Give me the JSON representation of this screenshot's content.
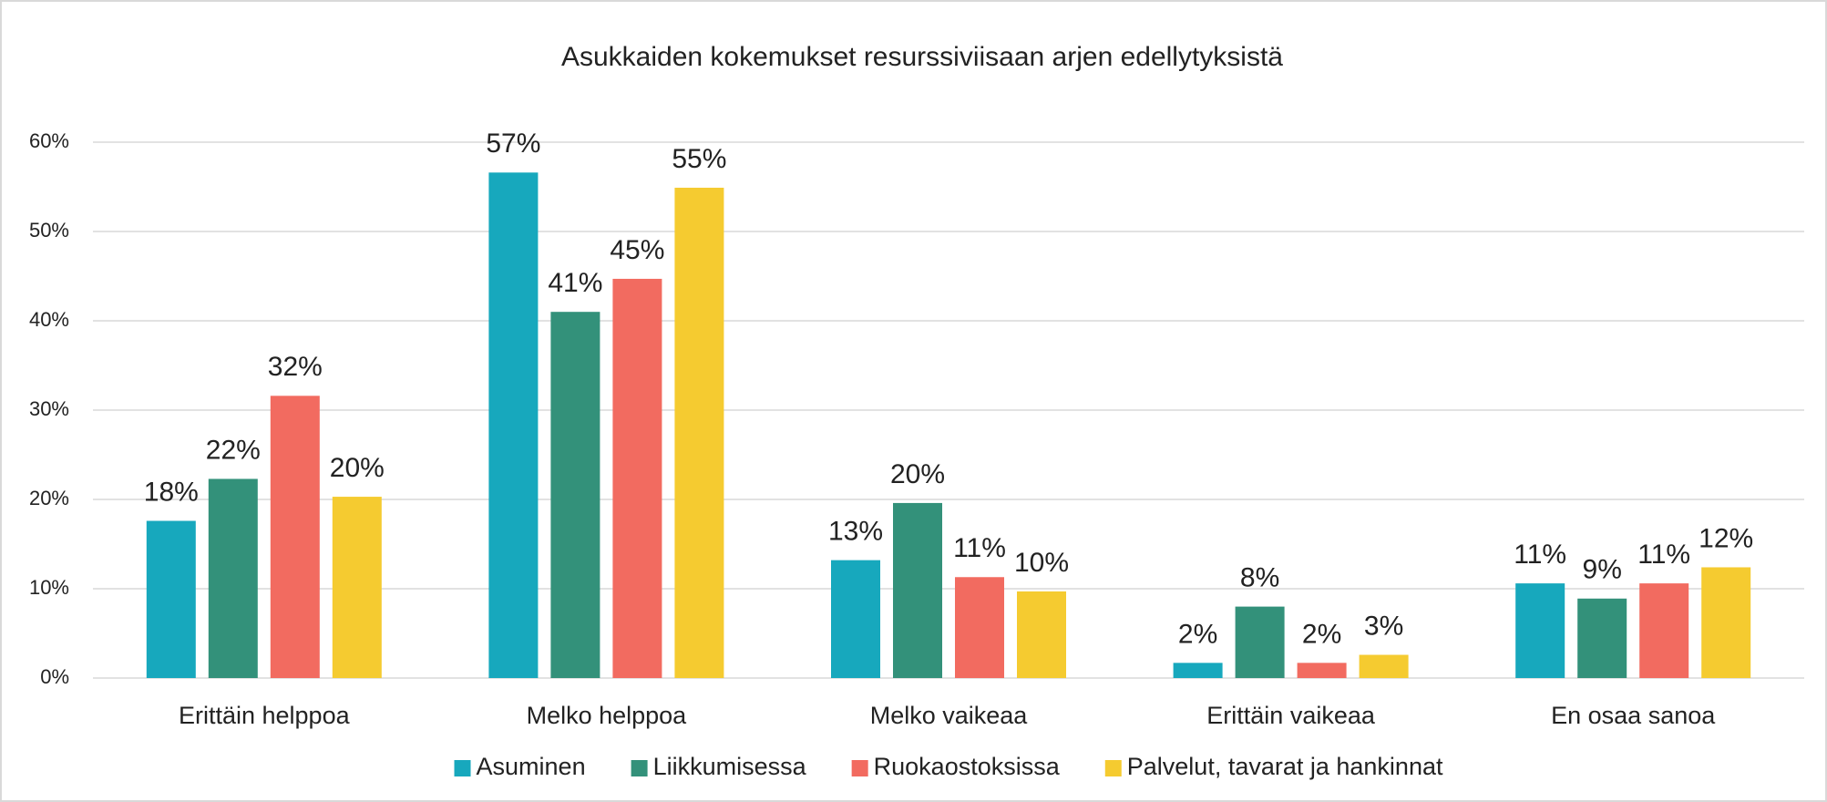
{
  "chart_data": {
    "type": "bar",
    "title": "Asukkaiden kokemukset resurssiviisaan arjen edellytyksistä",
    "categories": [
      "Erittäin helppoa",
      "Melko helppoa",
      "Melko vaikeaa",
      "Erittäin vaikeaa",
      "En osaa sanoa"
    ],
    "series": [
      {
        "name": "Asuminen",
        "color": "#17a8bd",
        "values": [
          17.6,
          56.6,
          13.2,
          1.7,
          10.6
        ],
        "value_labels": [
          "18%",
          "57%",
          "13%",
          "2%",
          "11%"
        ]
      },
      {
        "name": "Liikkumisessa",
        "color": "#33917a",
        "values": [
          22.3,
          41.0,
          19.6,
          8.0,
          8.9
        ],
        "value_labels": [
          "22%",
          "41%",
          "20%",
          "8%",
          "9%"
        ]
      },
      {
        "name": "Ruokaostoksissa",
        "color": "#f26b60",
        "values": [
          31.6,
          44.7,
          11.3,
          1.7,
          10.6
        ],
        "value_labels": [
          "32%",
          "45%",
          "11%",
          "2%",
          "11%"
        ]
      },
      {
        "name": "Palvelut, tavarat ja hankinnat",
        "color": "#f5cb30",
        "values": [
          20.3,
          54.9,
          9.7,
          2.6,
          12.4
        ],
        "value_labels": [
          "20%",
          "55%",
          "10%",
          "3%",
          "12%"
        ]
      }
    ],
    "ylim": [
      0,
      60
    ],
    "yticks": [
      {
        "value": 0,
        "label": "0%"
      },
      {
        "value": 10,
        "label": "10%"
      },
      {
        "value": 20,
        "label": "20%"
      },
      {
        "value": 30,
        "label": "30%"
      },
      {
        "value": 40,
        "label": "40%"
      },
      {
        "value": 50,
        "label": "50%"
      },
      {
        "value": 60,
        "label": "60%"
      }
    ],
    "grid": true,
    "legend": "bottom"
  }
}
